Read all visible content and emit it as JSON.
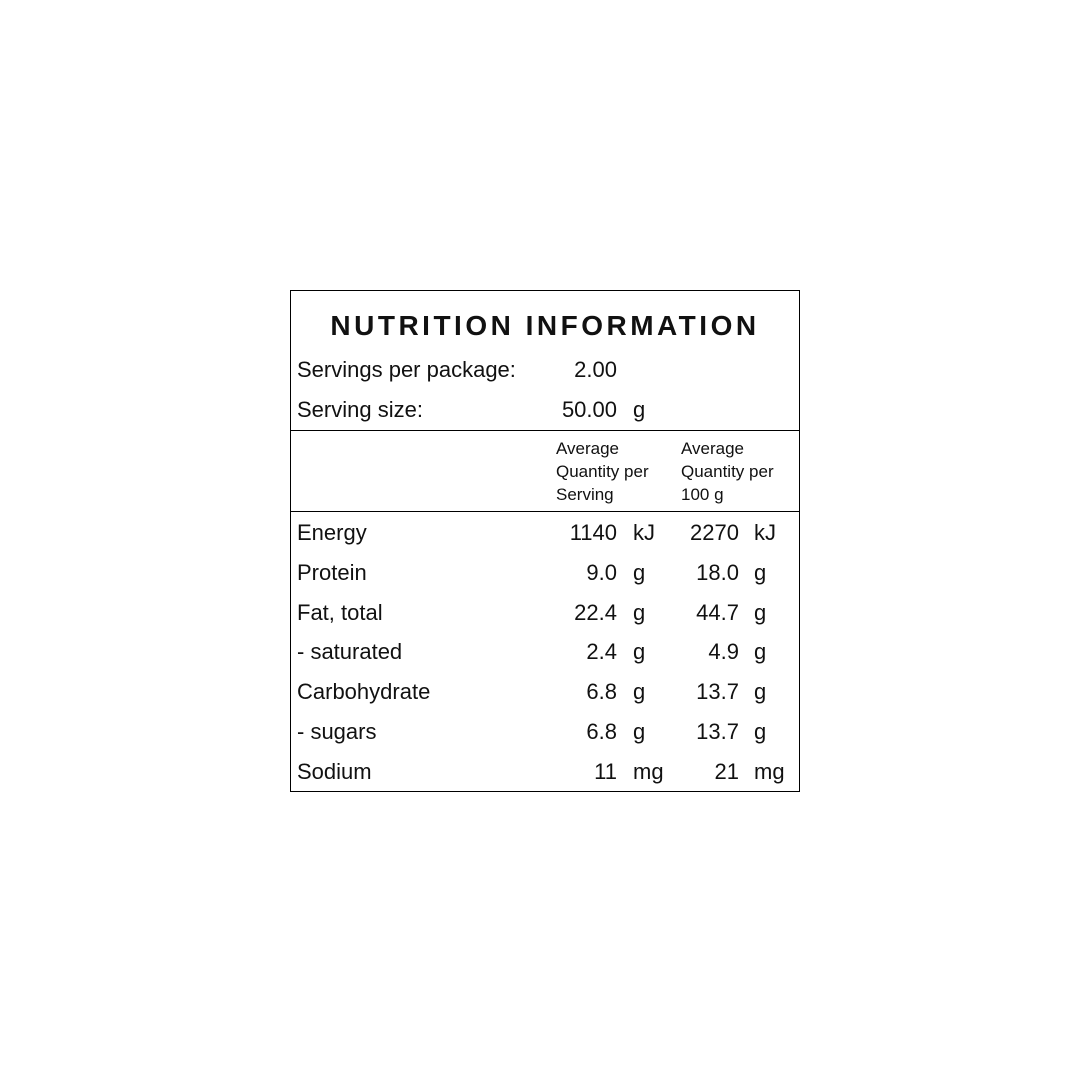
{
  "title": "NUTRITION INFORMATION",
  "servings_per_package": {
    "label": "Servings per package:",
    "value": "2.00"
  },
  "serving_size": {
    "label": "Serving size:",
    "value": "50.00",
    "unit": "g"
  },
  "table": {
    "columns": [
      [
        "Average",
        "Quantity per",
        "Serving"
      ],
      [
        "Average",
        "Quantity per",
        "100 g"
      ]
    ],
    "rows": [
      [
        "Energy",
        "1140",
        "kJ",
        "2270",
        "kJ"
      ],
      [
        "Protein",
        "9.0",
        "g",
        "18.0",
        "g"
      ],
      [
        "Fat, total",
        "22.4",
        "g",
        "44.7",
        "g"
      ],
      [
        "- saturated",
        "2.4",
        "g",
        "4.9",
        "g"
      ],
      [
        "Carbohydrate",
        "6.8",
        "g",
        "13.7",
        "g"
      ],
      [
        "- sugars",
        "6.8",
        "g",
        "13.7",
        "g"
      ],
      [
        "Sodium",
        "11",
        "mg",
        "21",
        "mg"
      ]
    ]
  }
}
